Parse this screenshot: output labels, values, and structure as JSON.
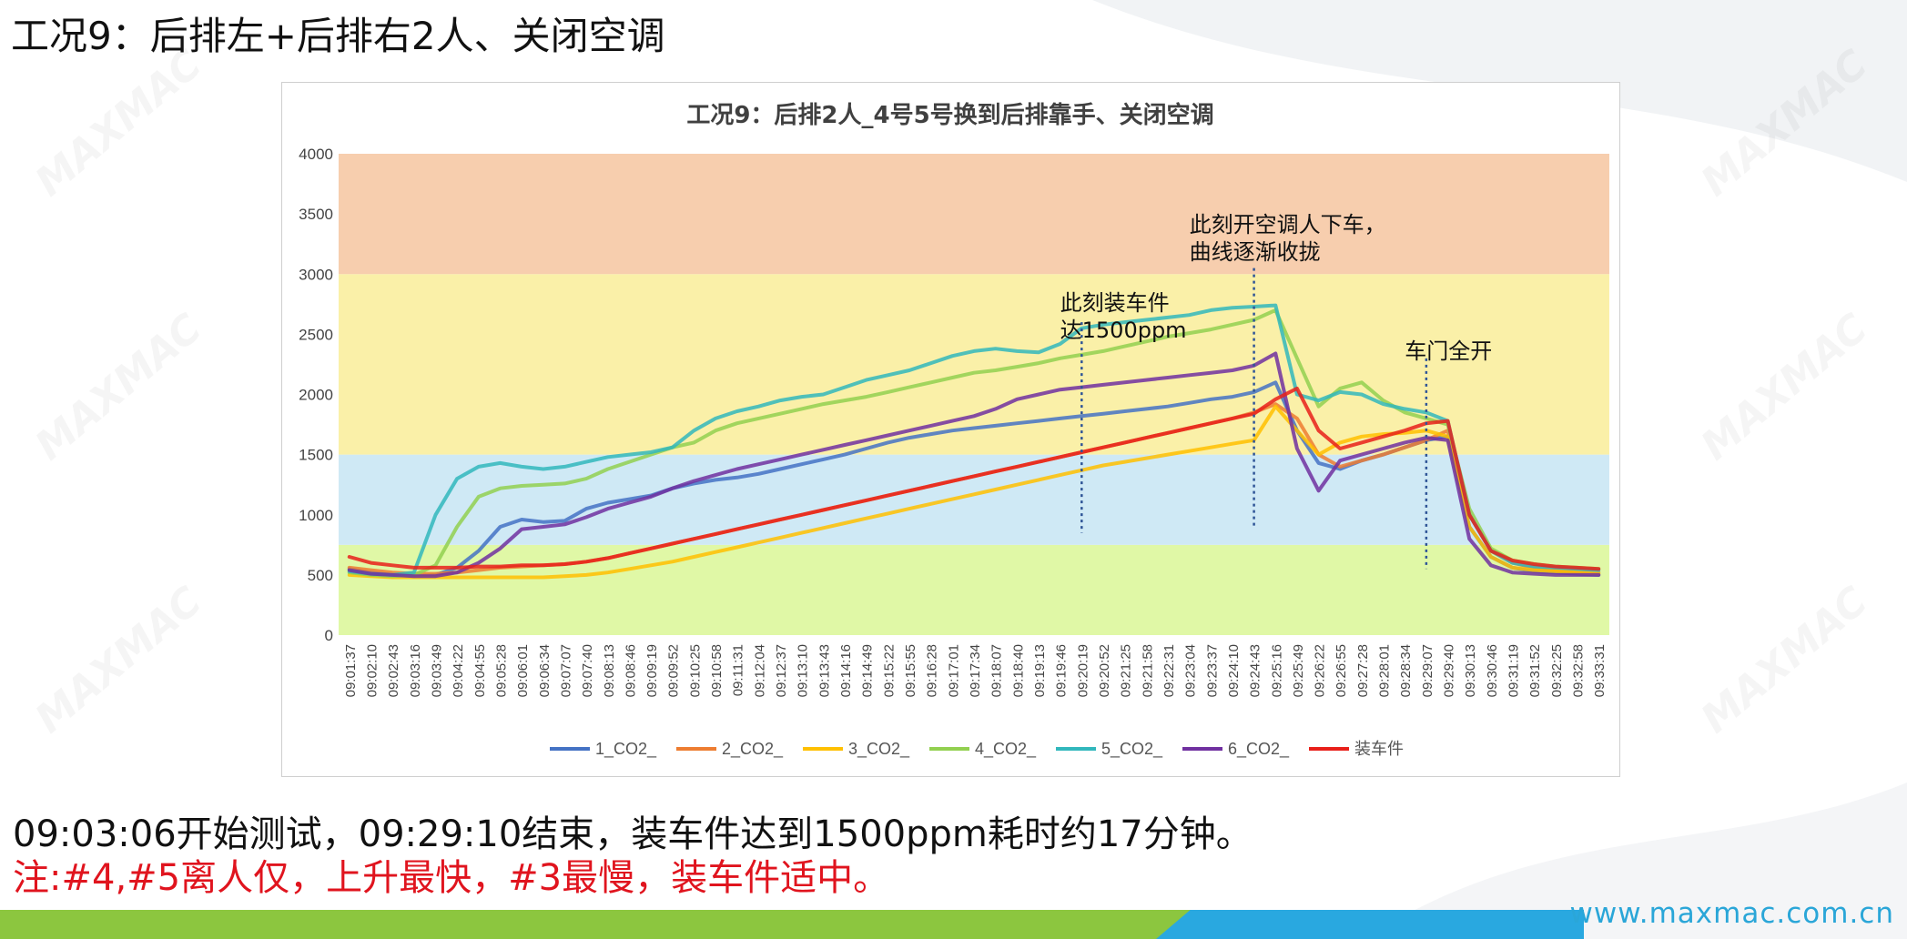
{
  "slide": {
    "title": "工况9：后排左+后排右2人、关闭空调",
    "note_line1": "09:03:06开始测试，09:29:10结束，装车件达到1500ppm耗时约17分钟。",
    "note_line2": "注:#4,#5离人仅，上升最快，#3最慢，装车件适中。",
    "footer_url": "www.maxmac.com.cn",
    "watermark": "MAXMAC",
    "colors": {
      "footer_green": "#8cc63f",
      "footer_blue": "#29a8e0",
      "note_red": "#e0141e"
    }
  },
  "chart_data": {
    "type": "line",
    "title": "工况9：后排2人_4号5号换到后排靠手、关闭空调",
    "xlabel": "",
    "ylabel": "",
    "ylim": [
      0,
      4000
    ],
    "y_ticks": [
      0,
      500,
      1000,
      1500,
      2000,
      2500,
      3000,
      3500,
      4000
    ],
    "grid": false,
    "legend_position": "bottom",
    "x_tick_labels": [
      "09:01:37",
      "09:02:10",
      "09:02:43",
      "09:03:16",
      "09:03:49",
      "09:04:22",
      "09:04:55",
      "09:05:28",
      "09:06:01",
      "09:06:34",
      "09:07:07",
      "09:07:40",
      "09:08:13",
      "09:08:46",
      "09:09:19",
      "09:09:52",
      "09:10:25",
      "09:10:58",
      "09:11:31",
      "09:12:04",
      "09:12:37",
      "09:13:10",
      "09:13:43",
      "09:14:16",
      "09:14:49",
      "09:15:22",
      "09:15:55",
      "09:16:28",
      "09:17:01",
      "09:17:34",
      "09:18:07",
      "09:18:40",
      "09:19:13",
      "09:19:46",
      "09:20:19",
      "09:20:52",
      "09:21:25",
      "09:21:58",
      "09:22:31",
      "09:23:04",
      "09:23:37",
      "09:24:10",
      "09:24:43",
      "09:25:16",
      "09:25:49",
      "09:26:22",
      "09:26:55",
      "09:27:28",
      "09:28:01",
      "09:28:34",
      "09:29:07",
      "09:29:40",
      "09:30:13",
      "09:30:46",
      "09:31:19",
      "09:31:52",
      "09:32:25",
      "09:32:58",
      "09:33:31"
    ],
    "bands": [
      {
        "from": 0,
        "to": 750,
        "color": "#e0f8a6"
      },
      {
        "from": 750,
        "to": 1500,
        "color": "#cfe9f5"
      },
      {
        "from": 1500,
        "to": 3000,
        "color": "#faf0a8"
      },
      {
        "from": 3000,
        "to": 4000,
        "color": "#f7ceae"
      }
    ],
    "series": [
      {
        "name": "1_CO2_",
        "color": "#4472c4",
        "values": [
          550,
          520,
          500,
          490,
          500,
          560,
          700,
          900,
          960,
          940,
          950,
          1050,
          1100,
          1130,
          1160,
          1220,
          1260,
          1290,
          1310,
          1340,
          1380,
          1420,
          1460,
          1500,
          1550,
          1600,
          1640,
          1670,
          1700,
          1720,
          1740,
          1760,
          1780,
          1800,
          1820,
          1840,
          1860,
          1880,
          1900,
          1930,
          1960,
          1980,
          2020,
          2100,
          1700,
          1430,
          1380,
          1450,
          1500,
          1560,
          1620,
          1650,
          900,
          650,
          560,
          530,
          520,
          510,
          500
        ]
      },
      {
        "name": "2_CO2_",
        "color": "#ed7d31",
        "values": [
          560,
          540,
          520,
          510,
          510,
          520,
          540,
          560,
          570,
          580,
          590,
          610,
          640,
          680,
          720,
          760,
          800,
          840,
          880,
          920,
          960,
          1000,
          1040,
          1080,
          1120,
          1160,
          1200,
          1240,
          1280,
          1320,
          1360,
          1400,
          1440,
          1480,
          1520,
          1560,
          1600,
          1640,
          1680,
          1720,
          1760,
          1800,
          1850,
          1920,
          1800,
          1500,
          1400,
          1450,
          1500,
          1560,
          1620,
          1700,
          1000,
          700,
          600,
          560,
          540,
          530,
          520
        ]
      },
      {
        "name": "3_CO2_",
        "color": "#ffc000",
        "values": [
          500,
          490,
          480,
          480,
          480,
          480,
          480,
          480,
          480,
          480,
          490,
          500,
          520,
          550,
          580,
          610,
          650,
          690,
          730,
          770,
          810,
          850,
          890,
          930,
          970,
          1010,
          1050,
          1090,
          1130,
          1170,
          1210,
          1250,
          1290,
          1330,
          1370,
          1410,
          1440,
          1470,
          1500,
          1530,
          1560,
          1590,
          1620,
          1900,
          1700,
          1500,
          1600,
          1650,
          1670,
          1680,
          1700,
          1650,
          900,
          650,
          560,
          540,
          530,
          520,
          510
        ]
      },
      {
        "name": "4_CO2_",
        "color": "#92d050",
        "values": [
          520,
          500,
          490,
          500,
          580,
          900,
          1150,
          1220,
          1240,
          1250,
          1260,
          1300,
          1380,
          1440,
          1500,
          1560,
          1600,
          1700,
          1760,
          1800,
          1840,
          1880,
          1920,
          1950,
          1980,
          2020,
          2060,
          2100,
          2140,
          2180,
          2200,
          2230,
          2260,
          2300,
          2330,
          2360,
          2400,
          2440,
          2480,
          2510,
          2540,
          2580,
          2620,
          2700,
          2300,
          1900,
          2050,
          2100,
          1950,
          1850,
          1800,
          1750,
          1050,
          720,
          620,
          590,
          570,
          560,
          550
        ]
      },
      {
        "name": "5_CO2_",
        "color": "#31b7bc",
        "values": [
          530,
          510,
          500,
          520,
          1000,
          1300,
          1400,
          1430,
          1400,
          1380,
          1400,
          1440,
          1480,
          1500,
          1520,
          1560,
          1700,
          1800,
          1860,
          1900,
          1950,
          1980,
          2000,
          2060,
          2120,
          2160,
          2200,
          2260,
          2320,
          2360,
          2380,
          2360,
          2350,
          2420,
          2550,
          2580,
          2600,
          2620,
          2640,
          2660,
          2700,
          2720,
          2730,
          2740,
          2000,
          1950,
          2020,
          2000,
          1920,
          1880,
          1850,
          1780,
          1000,
          700,
          600,
          570,
          560,
          550,
          540
        ]
      },
      {
        "name": "6_CO2_",
        "color": "#7030a0",
        "values": [
          540,
          510,
          500,
          490,
          490,
          520,
          600,
          720,
          880,
          900,
          920,
          980,
          1050,
          1100,
          1150,
          1220,
          1280,
          1330,
          1380,
          1420,
          1460,
          1500,
          1540,
          1580,
          1620,
          1660,
          1700,
          1740,
          1780,
          1820,
          1880,
          1960,
          2000,
          2040,
          2060,
          2080,
          2100,
          2120,
          2140,
          2160,
          2180,
          2200,
          2240,
          2340,
          1550,
          1200,
          1450,
          1500,
          1550,
          1600,
          1640,
          1620,
          800,
          580,
          520,
          510,
          500,
          500,
          500
        ]
      },
      {
        "name": "装车件",
        "color": "#e8201a",
        "values": [
          650,
          600,
          580,
          560,
          560,
          560,
          570,
          570,
          580,
          580,
          590,
          610,
          640,
          680,
          720,
          760,
          800,
          840,
          880,
          920,
          960,
          1000,
          1040,
          1080,
          1120,
          1160,
          1200,
          1240,
          1280,
          1320,
          1360,
          1400,
          1440,
          1480,
          1520,
          1560,
          1600,
          1640,
          1680,
          1720,
          1760,
          1800,
          1840,
          1960,
          2050,
          1700,
          1550,
          1600,
          1650,
          1700,
          1760,
          1780,
          1000,
          700,
          620,
          590,
          570,
          560,
          550
        ]
      }
    ],
    "vlines": [
      {
        "x_label": "09:20:19",
        "y_from": 850,
        "y_to": 2600
      },
      {
        "x_label": "09:24:43",
        "y_from": 900,
        "y_to": 3050
      },
      {
        "x_label": "09:29:07",
        "y_from": 550,
        "y_to": 2300
      }
    ],
    "annotations": [
      {
        "lines": [
          "此刻装车件",
          "达1500ppm"
        ],
        "x_label": "09:19:46",
        "y": 2700
      },
      {
        "lines": [
          "此刻开空调人下车，",
          "曲线逐渐收拢"
        ],
        "x_label": "09:23:04",
        "y": 3350
      },
      {
        "lines": [
          "车门全开"
        ],
        "x_label": "09:28:34",
        "y": 2300
      }
    ]
  }
}
